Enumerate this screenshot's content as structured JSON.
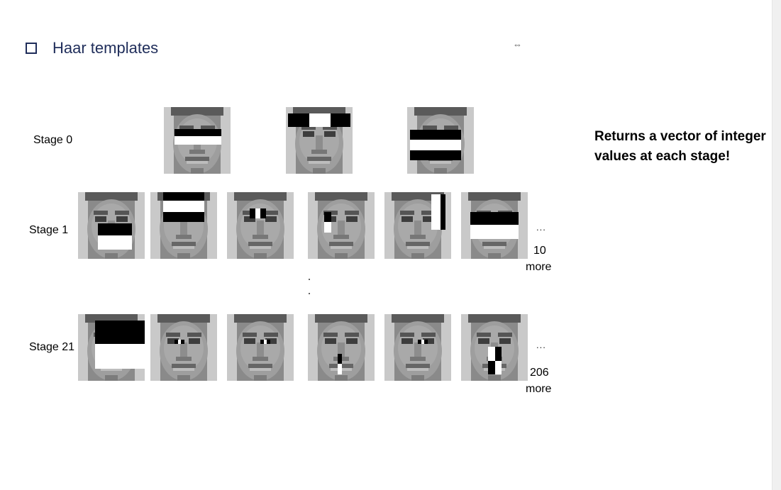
{
  "header": {
    "title": "Haar templates",
    "bullet_icon": "checkbox-bullet-icon"
  },
  "cursor_icon": "resize-horizontal-icon",
  "stages": [
    {
      "label": "Stage 0"
    },
    {
      "label": "Stage 1",
      "ellipsis": "...",
      "more_count": "10",
      "more_word": "more"
    },
    {
      "label": "Stage 21",
      "ellipsis": "...",
      "more_count": "206",
      "more_word": "more"
    }
  ],
  "note": "Returns a vector of integer values at each stage!",
  "colors": {
    "title": "#1f2d5a",
    "feature_dark": "#000000",
    "feature_light": "#ffffff"
  }
}
